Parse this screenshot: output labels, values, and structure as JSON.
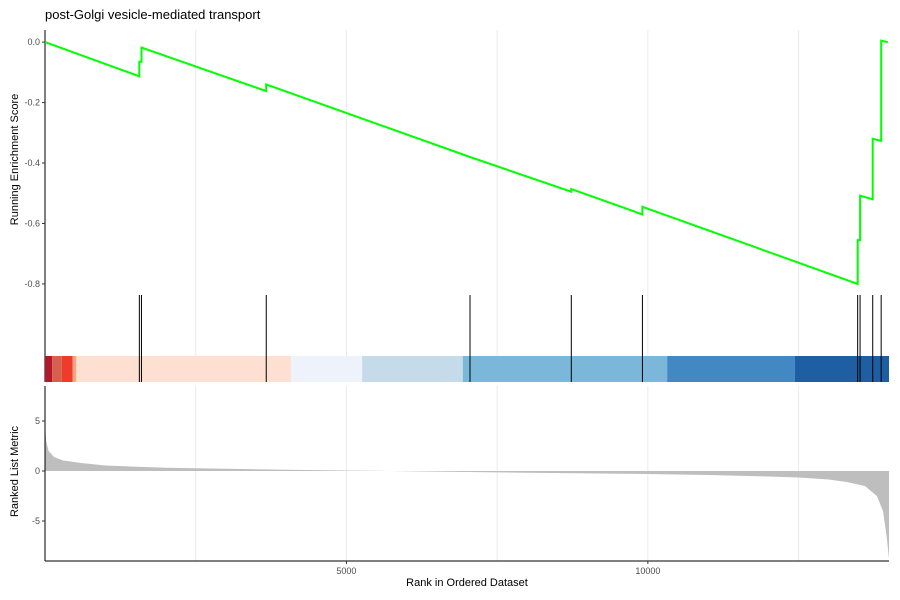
{
  "title": "post-Golgi vesicle-mediated transport",
  "chart_data": [
    {
      "panel": "running_score",
      "type": "line",
      "title": "post-Golgi vesicle-mediated transport",
      "ylabel": "Running Enrichment Score",
      "xlabel": "",
      "xlim": [
        0,
        14000
      ],
      "ylim": [
        -0.83,
        0.04
      ],
      "yticks": [
        0.0,
        -0.2,
        -0.4,
        -0.6,
        -0.8
      ],
      "ytick_labels": [
        "0.0",
        "-0.2",
        "-0.4",
        "-0.6",
        "-0.8"
      ],
      "xgrid": [
        2500,
        5000,
        7500,
        10000,
        12500
      ],
      "grid": "vertical",
      "line_color": "#00ff00",
      "series": [
        {
          "x": [
            0,
            1565,
            1565,
            1600,
            1600,
            3670,
            3670,
            7050,
            8730,
            8730,
            9910,
            9910,
            13480,
            13480,
            13520,
            13520,
            13730,
            13730,
            13870,
            13870,
            13980
          ],
          "y": [
            0.0,
            -0.113,
            -0.065,
            -0.065,
            -0.018,
            -0.162,
            -0.14,
            -0.38,
            -0.495,
            -0.486,
            -0.57,
            -0.545,
            -0.8,
            -0.655,
            -0.655,
            -0.508,
            -0.52,
            -0.32,
            -0.327,
            0.005,
            0.0
          ]
        }
      ]
    },
    {
      "panel": "hits",
      "type": "barcode",
      "hit_positions": [
        1565,
        1600,
        3670,
        7050,
        8730,
        9910,
        13480,
        13520,
        13730,
        13870
      ],
      "color_bands": [
        {
          "from": 0,
          "to": 120,
          "color": "#b2182b"
        },
        {
          "from": 120,
          "to": 280,
          "color": "#d6604d"
        },
        {
          "from": 280,
          "to": 460,
          "color": "#ef3b2c"
        },
        {
          "from": 460,
          "to": 520,
          "color": "#f4a582"
        },
        {
          "from": 520,
          "to": 4080,
          "color": "#fde0d2"
        },
        {
          "from": 4080,
          "to": 5260,
          "color": "#eef3fb"
        },
        {
          "from": 5260,
          "to": 6930,
          "color": "#c6dbe9"
        },
        {
          "from": 6930,
          "to": 10320,
          "color": "#7ab7d8"
        },
        {
          "from": 10320,
          "to": 12440,
          "color": "#4289c4"
        },
        {
          "from": 12440,
          "to": 14000,
          "color": "#1d5fa2"
        }
      ]
    },
    {
      "panel": "ranked_metric",
      "type": "area",
      "ylabel": "Ranked List Metric",
      "xlabel": "Rank in Ordered Dataset",
      "xlim": [
        0,
        14000
      ],
      "ylim": [
        -9,
        8.5
      ],
      "yticks": [
        5,
        0,
        -5
      ],
      "ytick_labels": [
        "5",
        "0",
        "-5"
      ],
      "xticks": [
        5000,
        10000
      ],
      "xtick_labels": [
        "5000",
        "10000"
      ],
      "fill_color": "#bebebe",
      "x": [
        0,
        20,
        60,
        150,
        300,
        600,
        1000,
        2000,
        3000,
        4000,
        5000,
        6000,
        7000,
        8000,
        9000,
        10000,
        11000,
        12000,
        12500,
        13000,
        13300,
        13600,
        13800,
        13900,
        13960,
        14000
      ],
      "y": [
        4.8,
        3.0,
        2.0,
        1.4,
        1.05,
        0.8,
        0.55,
        0.32,
        0.22,
        0.12,
        0.05,
        -0.02,
        -0.1,
        -0.17,
        -0.24,
        -0.3,
        -0.4,
        -0.55,
        -0.65,
        -0.85,
        -1.1,
        -1.5,
        -2.5,
        -4.0,
        -6.5,
        -8.8
      ]
    }
  ]
}
